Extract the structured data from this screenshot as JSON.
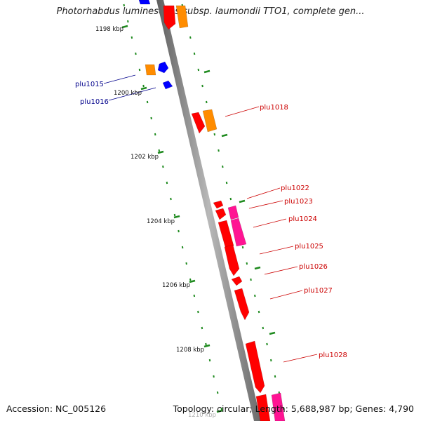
{
  "title": "Photorhabdus luminescens subsp. laumondii TTO1, complete gen...",
  "footer": {
    "accession": "Accession: NC_005126",
    "stats": "Topology: circular; Length: 5,688,987 bp; Genes: 4,790"
  },
  "ticks": [
    {
      "label": "1198 kbp",
      "pos_kbp": 1198
    },
    {
      "label": "1200 kbp",
      "pos_kbp": 1200
    },
    {
      "label": "1202 kbp",
      "pos_kbp": 1202
    },
    {
      "label": "1204 kbp",
      "pos_kbp": 1204
    },
    {
      "label": "1206 kbp",
      "pos_kbp": 1206
    },
    {
      "label": "1208 kbp",
      "pos_kbp": 1208
    },
    {
      "label": "1210 kbp",
      "pos_kbp": 1210
    }
  ],
  "genes": [
    {
      "label": "plu1015",
      "strand": "minus",
      "color": "#00008b"
    },
    {
      "label": "plu1016",
      "strand": "minus",
      "color": "#00008b"
    },
    {
      "label": "plu1018",
      "strand": "plus",
      "color": "#cc0000"
    },
    {
      "label": "plu1022",
      "strand": "plus",
      "color": "#cc0000"
    },
    {
      "label": "plu1023",
      "strand": "plus",
      "color": "#cc0000"
    },
    {
      "label": "plu1024",
      "strand": "plus",
      "color": "#cc0000"
    },
    {
      "label": "plu1025",
      "strand": "plus",
      "color": "#cc0000"
    },
    {
      "label": "plu1026",
      "strand": "plus",
      "color": "#cc0000"
    },
    {
      "label": "plu1027",
      "strand": "plus",
      "color": "#cc0000"
    },
    {
      "label": "plu1028",
      "strand": "plus",
      "color": "#cc0000"
    }
  ],
  "colors": {
    "backbone": "#8a8a8a",
    "tick": "#1e8a1e",
    "gene_red": "#ff0000",
    "gene_orange": "#ff8c00",
    "gene_blue": "#0000ff",
    "gene_pink": "#ff1493"
  }
}
